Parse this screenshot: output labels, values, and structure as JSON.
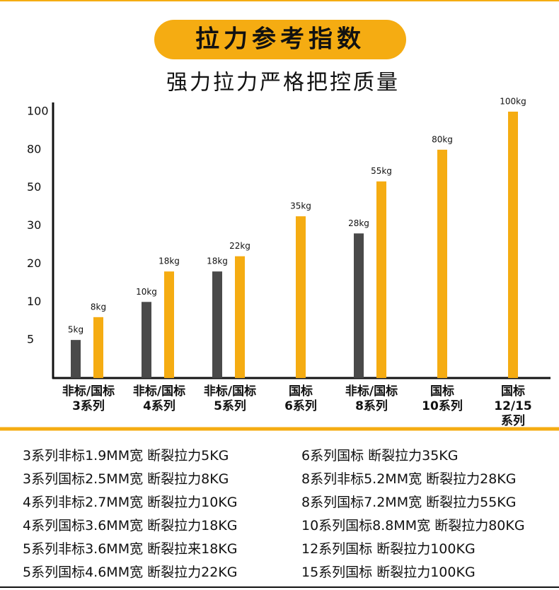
{
  "chart_data": {
    "type": "bar",
    "title": "拉力参考指数",
    "subtitle": "强力拉力严格把控质量",
    "categories": [
      "非标/国标\n3系列",
      "非标/国标\n4系列",
      "非标/国标\n5系列",
      "国标\n6系列",
      "非标/国标\n8系列",
      "国标\n10系列",
      "国标\n12/15\n系列"
    ],
    "series": [
      {
        "color": "#4a4a4a",
        "values": [
          5,
          10,
          18,
          null,
          28,
          null,
          null
        ],
        "value_labels": [
          "5kg",
          "10kg",
          "18kg",
          null,
          "28kg",
          null,
          null
        ]
      },
      {
        "color": "#f5ac12",
        "values": [
          8,
          18,
          22,
          35,
          55,
          80,
          100
        ],
        "value_labels": [
          "8kg",
          "18kg",
          "22kg",
          "35kg",
          "55kg",
          "80kg",
          "100kg"
        ]
      }
    ],
    "ylim": [
      0,
      100
    ],
    "yticks": [
      5,
      10,
      20,
      30,
      50,
      80,
      100
    ]
  },
  "notes": {
    "left": [
      "3系列非标1.9MM宽 断裂拉力5KG",
      "3系列国标2.5MM宽 断裂拉力8KG",
      "4系列非标2.7MM宽 断裂拉力10KG",
      "4系列国标3.6MM宽 断裂拉力18KG",
      "5系列非标3.6MM宽 断裂拉来18KG",
      "5系列国标4.6MM宽 断裂拉力22KG"
    ],
    "right": [
      "6系列国标 断裂拉力35KG",
      "8系列非标5.2MM宽 断裂拉力28KG",
      "8系列国标7.2MM宽 断裂拉力55KG",
      "10系列国标8.8MM宽 断裂拉力80KG",
      "12系列国标 断裂拉力100KG",
      "15系列国标 断裂拉力100KG"
    ]
  }
}
